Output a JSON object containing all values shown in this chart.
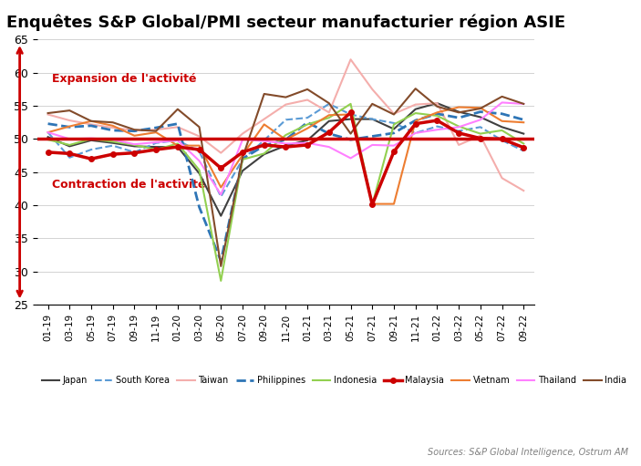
{
  "title": "Enquêtes S&P Global/PMI secteur manufacturier région ASIE",
  "source": "Sources: S&P Global Intelligence, Ostrum AM",
  "ylim": [
    25,
    65
  ],
  "yticks": [
    25,
    30,
    35,
    40,
    45,
    50,
    55,
    60,
    65
  ],
  "reference_line": 50,
  "expansion_label": "Expansion de l'activité",
  "contraction_label": "Contraction de l'activité",
  "x_labels": [
    "01-19",
    "03-19",
    "05-19",
    "07-19",
    "09-19",
    "11-19",
    "01-20",
    "03-20",
    "05-20",
    "07-20",
    "09-20",
    "11-20",
    "01-21",
    "03-21",
    "05-21",
    "07-21",
    "09-21",
    "11-21",
    "01-22",
    "03-22",
    "05-22",
    "07-22",
    "09-22"
  ],
  "series": {
    "Japan": {
      "color": "#404040",
      "linestyle": "solid",
      "linewidth": 1.5,
      "marker": null,
      "markersize": 0,
      "values": [
        50.3,
        48.9,
        49.8,
        49.4,
        48.9,
        48.8,
        48.8,
        44.8,
        38.4,
        45.2,
        47.7,
        49.0,
        49.8,
        52.7,
        53.0,
        53.0,
        51.5,
        54.5,
        55.4,
        54.1,
        53.3,
        51.8,
        50.8
      ]
    },
    "South Korea": {
      "color": "#5B9BD5",
      "linestyle": "dashed",
      "linewidth": 1.5,
      "marker": null,
      "markersize": 0,
      "values": [
        51.0,
        47.2,
        48.4,
        49.0,
        48.0,
        49.4,
        49.8,
        48.1,
        41.3,
        46.9,
        49.8,
        52.9,
        53.2,
        55.3,
        53.7,
        53.0,
        52.4,
        50.9,
        51.9,
        51.2,
        51.8,
        49.8,
        48.2
      ]
    },
    "Taiwan": {
      "color": "#F4AEAC",
      "linestyle": "solid",
      "linewidth": 1.5,
      "marker": null,
      "markersize": 0,
      "values": [
        53.7,
        52.8,
        52.2,
        51.7,
        51.3,
        51.4,
        51.8,
        50.4,
        47.9,
        50.8,
        53.0,
        55.2,
        55.9,
        54.0,
        62.0,
        57.5,
        53.8,
        55.2,
        55.4,
        49.1,
        50.5,
        44.1,
        42.2
      ]
    },
    "Philippines": {
      "color": "#2E75B6",
      "linestyle": "dashed",
      "linewidth": 2.0,
      "marker": null,
      "markersize": 0,
      "values": [
        52.3,
        51.8,
        52.0,
        51.3,
        51.2,
        51.7,
        52.3,
        39.7,
        31.6,
        47.0,
        49.0,
        49.9,
        52.5,
        50.8,
        49.9,
        50.4,
        50.9,
        52.8,
        53.8,
        53.2,
        54.1,
        53.8,
        52.9
      ]
    },
    "Indonesia": {
      "color": "#92D050",
      "linestyle": "solid",
      "linewidth": 1.5,
      "marker": null,
      "markersize": 0,
      "values": [
        49.9,
        49.1,
        50.0,
        49.6,
        49.1,
        48.4,
        49.3,
        45.3,
        28.6,
        46.9,
        47.8,
        50.6,
        52.2,
        53.2,
        55.3,
        40.1,
        52.2,
        53.9,
        53.5,
        51.9,
        50.8,
        51.3,
        49.3
      ]
    },
    "Malaysia": {
      "color": "#CC0000",
      "linestyle": "solid",
      "linewidth": 2.5,
      "marker": "o",
      "markersize": 4,
      "values": [
        48.0,
        47.8,
        47.0,
        47.7,
        47.9,
        48.4,
        48.8,
        48.4,
        45.6,
        48.0,
        49.1,
        48.8,
        49.1,
        51.0,
        54.0,
        40.1,
        48.1,
        52.3,
        52.8,
        50.9,
        50.1,
        50.0,
        48.7
      ]
    },
    "Vietnam": {
      "color": "#ED7D31",
      "linestyle": "solid",
      "linewidth": 1.5,
      "marker": null,
      "markersize": 0,
      "values": [
        51.0,
        51.9,
        52.7,
        52.0,
        50.5,
        51.0,
        49.0,
        49.0,
        42.7,
        47.6,
        52.2,
        49.9,
        51.6,
        53.6,
        53.7,
        40.2,
        40.2,
        52.7,
        54.0,
        54.8,
        54.7,
        52.7,
        52.5
      ]
    },
    "Thailand": {
      "color": "#FF80FF",
      "linestyle": "solid",
      "linewidth": 1.5,
      "marker": null,
      "markersize": 0,
      "values": [
        51.0,
        50.0,
        50.1,
        49.9,
        49.2,
        49.5,
        49.8,
        46.7,
        41.6,
        49.9,
        49.7,
        49.3,
        49.4,
        48.8,
        47.1,
        49.1,
        49.0,
        50.9,
        51.4,
        51.8,
        52.9,
        55.5,
        55.3
      ]
    },
    "India": {
      "color": "#834B2A",
      "linestyle": "solid",
      "linewidth": 1.5,
      "marker": null,
      "markersize": 0,
      "values": [
        53.9,
        54.3,
        52.7,
        52.5,
        51.4,
        51.2,
        54.5,
        51.8,
        30.8,
        47.2,
        56.8,
        56.3,
        57.5,
        55.4,
        50.8,
        55.3,
        53.7,
        57.6,
        54.9,
        54.0,
        54.6,
        56.4,
        55.3
      ]
    }
  }
}
